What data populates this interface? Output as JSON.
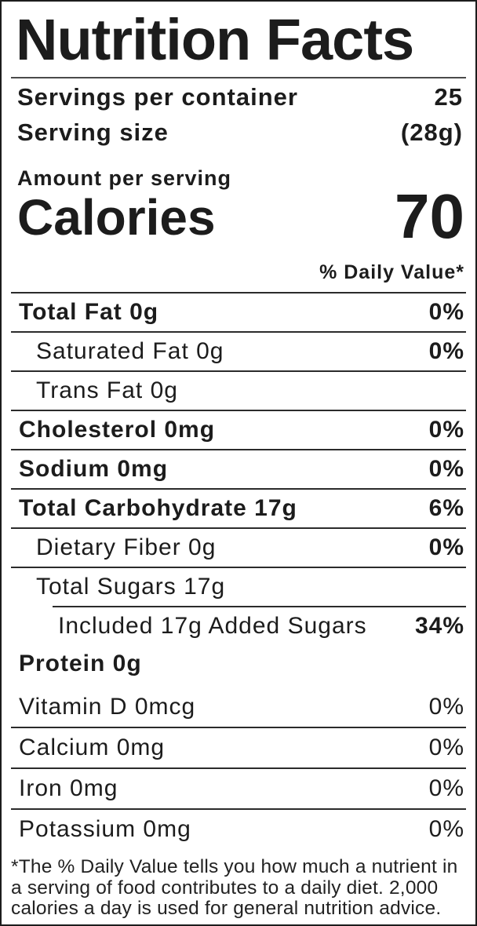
{
  "label": {
    "title": "Nutrition Facts",
    "serving_info": {
      "servings_per_container_label": "Servings per container",
      "servings_per_container_value": "25",
      "serving_size_label": "Serving size",
      "serving_size_value": "(28g)"
    },
    "calories_section": {
      "amount_per_serving": "Amount per serving",
      "calories_label": "Calories",
      "calories_value": "70"
    },
    "daily_value_header": "% Daily Value*",
    "nutrients": [
      {
        "name": "Total Fat 0g",
        "dv": "0%"
      },
      {
        "name": "Saturated Fat 0g",
        "dv": "0%"
      },
      {
        "name": "Trans Fat 0g",
        "dv": ""
      },
      {
        "name": "Cholesterol 0mg",
        "dv": "0%"
      },
      {
        "name": "Sodium 0mg",
        "dv": "0%"
      },
      {
        "name": "Total Carbohydrate 17g",
        "dv": "6%"
      },
      {
        "name": "Dietary Fiber 0g",
        "dv": "0%"
      },
      {
        "name": "Total Sugars 17g",
        "dv": ""
      },
      {
        "name": "Included 17g Added Sugars",
        "dv": "34%"
      },
      {
        "name": "Protein 0g",
        "dv": ""
      }
    ],
    "vitamins": [
      {
        "name": "Vitamin D 0mcg",
        "dv": "0%"
      },
      {
        "name": "Calcium 0mg",
        "dv": "0%"
      },
      {
        "name": "Iron 0mg",
        "dv": "0%"
      },
      {
        "name": "Potassium 0mg",
        "dv": "0%"
      }
    ],
    "footnote": "*The % Daily Value tells you how much a nutrient in a serving of food contributes to a daily diet. 2,000 calories a day is used for general nutrition advice."
  }
}
